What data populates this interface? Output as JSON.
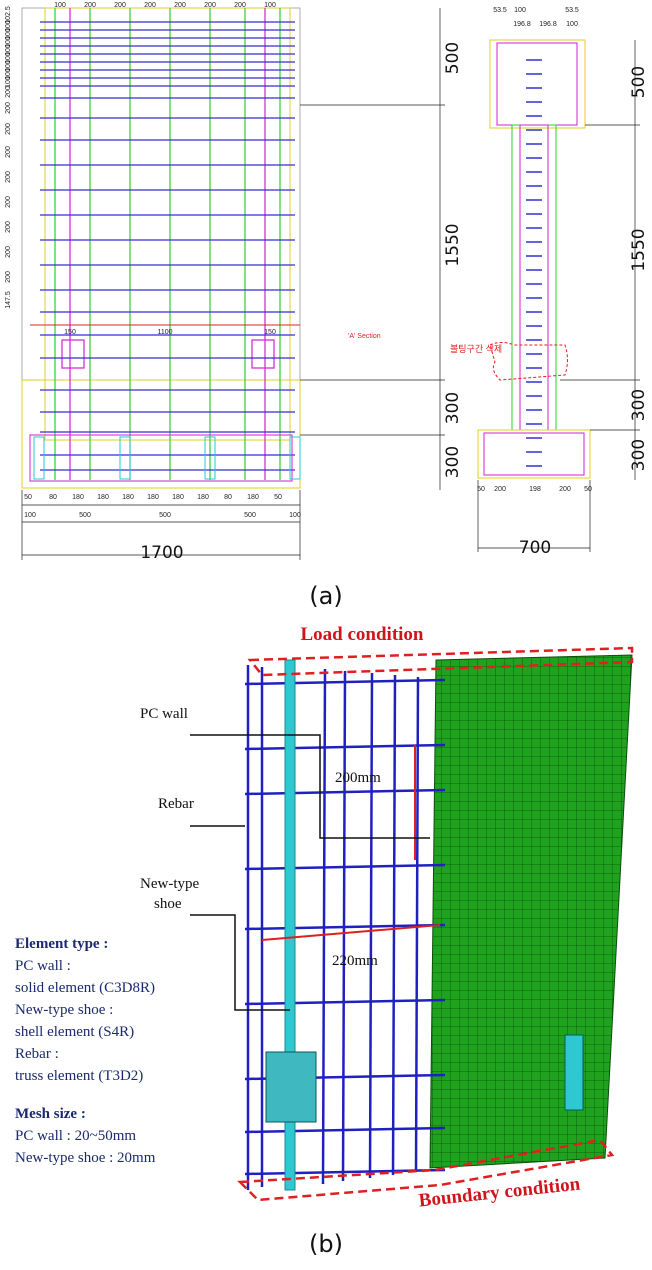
{
  "figure_a": {
    "front_view": {
      "top_dims": [
        "100",
        "200",
        "200",
        "200",
        "200",
        "200",
        "200",
        "100"
      ],
      "left_dims": [
        "102.5",
        "100",
        "100",
        "100",
        "100",
        "100",
        "100",
        "100",
        "100",
        "200",
        "200",
        "200",
        "200",
        "200",
        "200",
        "200",
        "200",
        "200",
        "147.5"
      ],
      "bottom_dims_1": [
        "50",
        "80",
        "180",
        "180",
        "180",
        "180",
        "180",
        "180",
        "80",
        "180",
        "50"
      ],
      "bottom_dims_2": [
        "100",
        "500",
        "500",
        "500",
        "100"
      ],
      "section_dims": [
        "150",
        "1100",
        "150"
      ],
      "section_label": "'A' Section",
      "height_dims": [
        "500",
        "1550",
        "300",
        "300"
      ],
      "width_dim": "1700"
    },
    "side_view": {
      "top_dims": [
        "53.5",
        "100",
        "196.8",
        "196.8",
        "53.5",
        "100"
      ],
      "bottom_dims": [
        "50",
        "200",
        "198",
        "200",
        "50"
      ],
      "height_dims": [
        "500",
        "1550",
        "300",
        "300"
      ],
      "note": "볼팅구간 삭제",
      "width_dim": "700"
    },
    "caption": "(a)"
  },
  "figure_b": {
    "load_label": "Load condition",
    "pc_wall_label": "PC wall",
    "rebar_label": "Rebar",
    "shoe_label": [
      "New-type",
      "shoe"
    ],
    "spacing_vertical": "200mm",
    "spacing_horizontal": "220mm",
    "element_type": {
      "heading": "Element type :",
      "lines": [
        "PC wall :",
        "solid element (C3D8R)",
        "New-type shoe :",
        "shell element (S4R)",
        "Rebar :",
        "truss element (T3D2)"
      ]
    },
    "mesh_size": {
      "heading": "Mesh size :",
      "lines": [
        "PC wall : 20~50mm",
        "New-type shoe : 20mm"
      ]
    },
    "boundary_label": "Boundary condition",
    "caption": "(b)"
  }
}
